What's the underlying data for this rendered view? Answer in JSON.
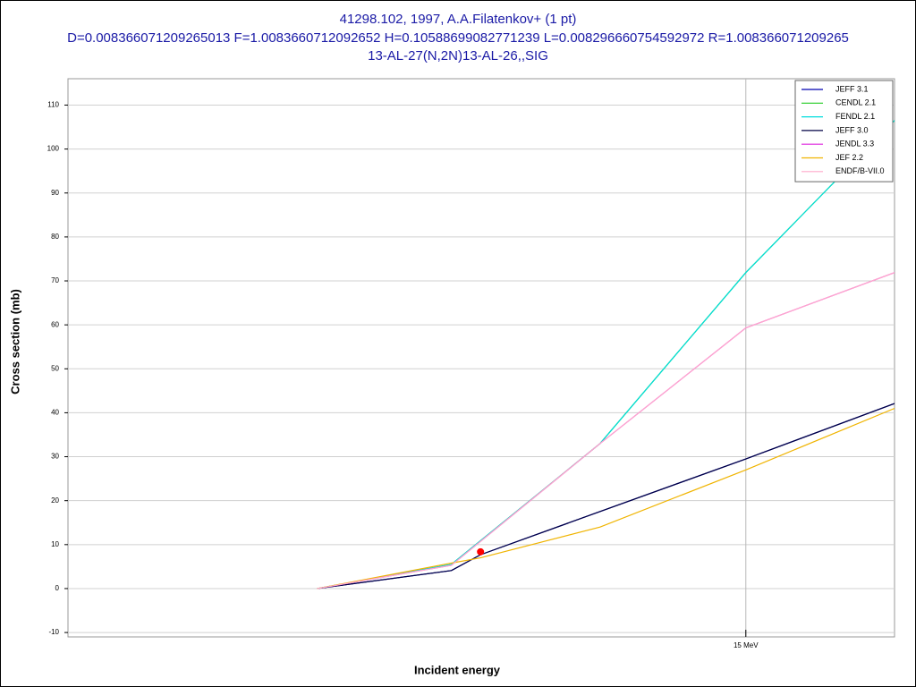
{
  "chart_data": {
    "type": "line",
    "title": [
      "41298.102, 1997, A.A.Filatenkov+ (1 pt)",
      "D=0.008366071209265013 F=1.0083660712092652 H=0.10588699082771239 L=0.008296660754592972 R=1.008366071209265",
      "13-AL-27(N,2N)13-AL-26,,SIG"
    ],
    "xlabel": "Incident energy",
    "ylabel": "Cross section (mb)",
    "xlim": [
      12.675,
      15.51
    ],
    "ylim": [
      -11,
      116
    ],
    "xticks": [
      {
        "value": 15,
        "label": "15 MeV"
      }
    ],
    "yticks": [
      -10,
      0,
      10,
      20,
      30,
      40,
      50,
      60,
      70,
      80,
      90,
      100,
      110
    ],
    "grid": true,
    "legend": "upper right",
    "series": [
      {
        "name": "JEFF 3.1",
        "color": "#0000b0",
        "x": [
          13.53,
          13.99,
          14.09,
          15.0,
          15.51
        ],
        "values": [
          0,
          4.1,
          7.7,
          29.5,
          42.1
        ]
      },
      {
        "name": "CENDL 2.1",
        "color": "#22cc22",
        "x": [
          13.53,
          13.99,
          14.5,
          15.0,
          15.51
        ],
        "values": [
          0,
          5.5,
          33,
          71.9,
          106.5
        ]
      },
      {
        "name": "FENDL 2.1",
        "color": "#00dddd",
        "x": [
          13.53,
          13.99,
          14.5,
          15.0,
          15.51
        ],
        "values": [
          0,
          5.5,
          33,
          71.9,
          106.5
        ]
      },
      {
        "name": "JEFF 3.0",
        "color": "#000044",
        "x": [
          13.53,
          13.99,
          14.09,
          15.0,
          15.51
        ],
        "values": [
          0,
          4.1,
          7.7,
          29.5,
          42.1
        ]
      },
      {
        "name": "JENDL 3.3",
        "color": "#dd22dd",
        "x": [
          13.53,
          13.99,
          14.5,
          15.0,
          15.51
        ],
        "values": [
          0,
          5.3,
          33,
          59.3,
          71.9
        ]
      },
      {
        "name": "JEF 2.2",
        "color": "#f0b400",
        "x": [
          13.53,
          13.99,
          14.09,
          14.5,
          15.0,
          15.51
        ],
        "values": [
          0,
          5.8,
          7,
          14,
          27,
          41
        ]
      },
      {
        "name": "ENDF/B-VII.0",
        "color": "#ffaacc",
        "x": [
          13.53,
          13.99,
          14.5,
          15.0,
          15.51
        ],
        "values": [
          0,
          5.3,
          33,
          59.3,
          71.9
        ]
      }
    ],
    "points": {
      "color": "#ff0000",
      "x": [
        14.09
      ],
      "values": [
        8.37
      ]
    }
  }
}
